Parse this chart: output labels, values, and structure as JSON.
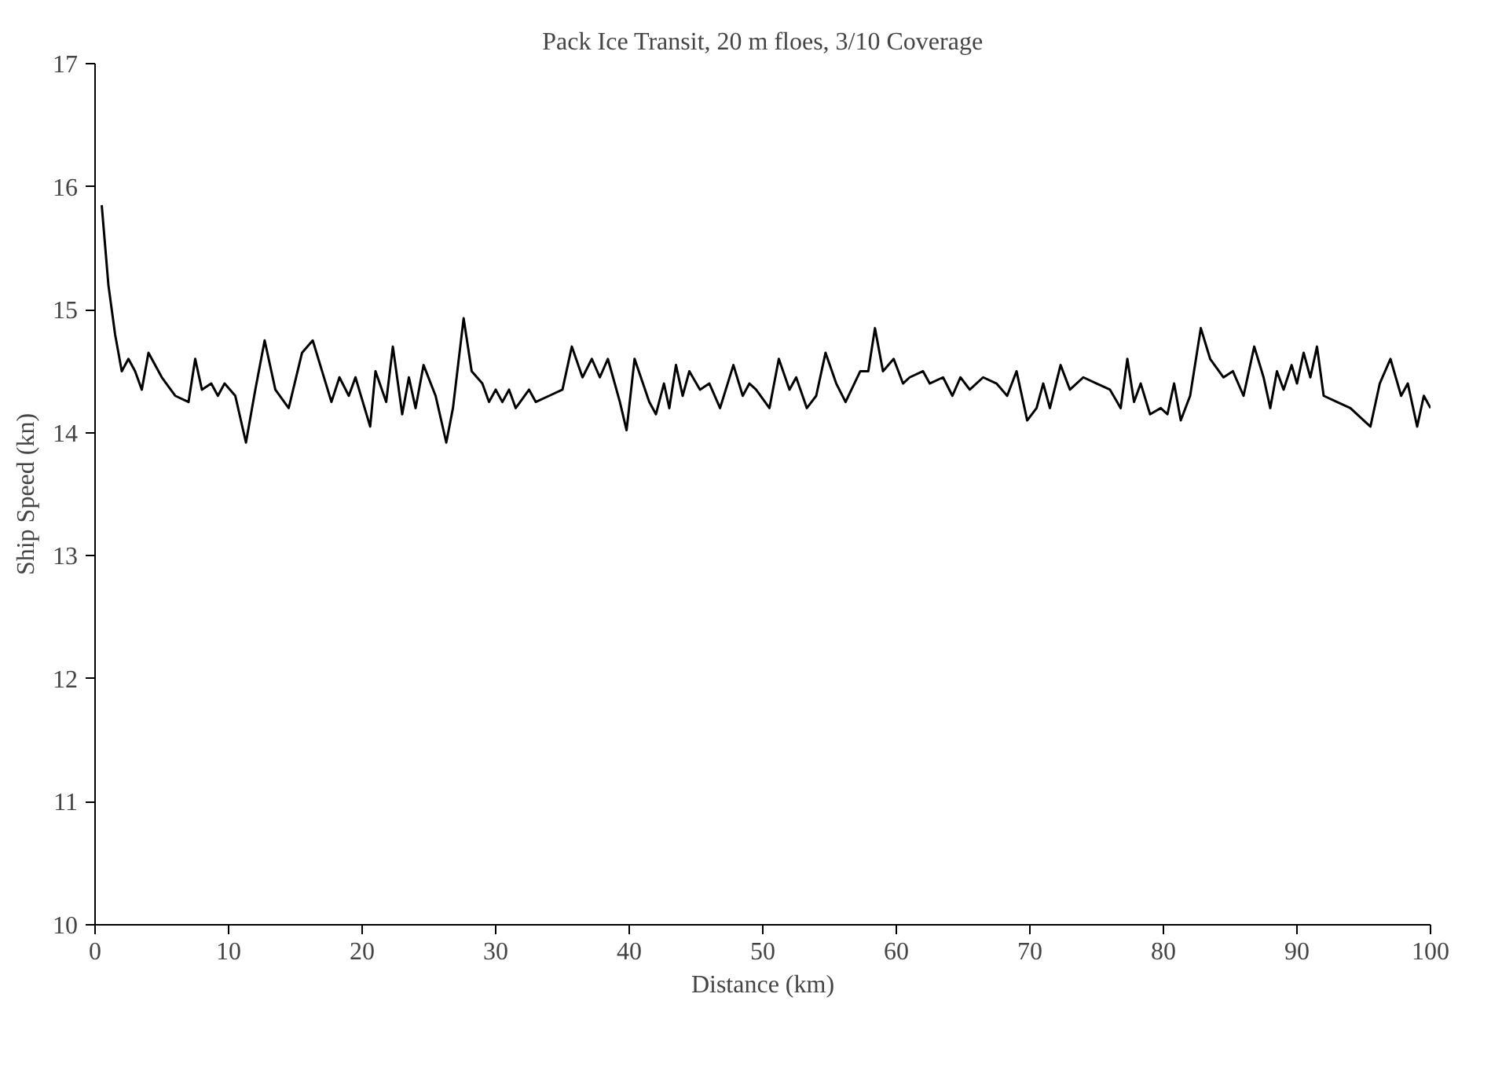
{
  "chart_data": {
    "type": "line",
    "title": "Pack Ice Transit, 20 m floes, 3/10 Coverage",
    "xlabel": "Distance (km)",
    "ylabel": "Ship Speed (kn)",
    "x": [
      0.5,
      1,
      1.5,
      2,
      2.5,
      3,
      3.5,
      4,
      5,
      6,
      7,
      7.5,
      8,
      8.7,
      9.2,
      9.7,
      10.5,
      11.3,
      12,
      12.7,
      13.5,
      14.5,
      15.5,
      16.3,
      17,
      17.7,
      18.3,
      19,
      19.5,
      20.6,
      21,
      21.8,
      22.3,
      23,
      23.5,
      24,
      24.6,
      25.5,
      26.3,
      26.8,
      27.6,
      28.2,
      29,
      29.5,
      30,
      30.5,
      31,
      31.5,
      32.5,
      33,
      34,
      35,
      35.7,
      36.5,
      37.2,
      37.8,
      38.4,
      39.3,
      39.8,
      40.4,
      41.5,
      42,
      42.6,
      43,
      43.5,
      44,
      44.5,
      45.3,
      46,
      46.8,
      47.8,
      48.5,
      49,
      49.5,
      50.5,
      51.2,
      52,
      52.5,
      53.3,
      54,
      54.7,
      55.5,
      56.2,
      57.3,
      57.9,
      58.4,
      59,
      59.8,
      60.5,
      61,
      62,
      62.5,
      63.5,
      64.2,
      64.8,
      65.5,
      66.5,
      67.5,
      68.3,
      69,
      69.8,
      70.5,
      71,
      71.5,
      72.3,
      73,
      74,
      75,
      76,
      76.8,
      77.3,
      77.8,
      78.3,
      79,
      79.8,
      80.3,
      80.8,
      81.3,
      82,
      82.8,
      83.5,
      84.5,
      85.2,
      86,
      86.8,
      87.5,
      88,
      88.5,
      89,
      89.6,
      90,
      90.5,
      91,
      91.5,
      92,
      93,
      94,
      95,
      95.5,
      96.2,
      97,
      97.8,
      98.3,
      99,
      99.5,
      100
    ],
    "series": [
      {
        "color": "#000000",
        "values": [
          15.85,
          15.2,
          14.8,
          14.5,
          14.6,
          14.5,
          14.35,
          14.65,
          14.45,
          14.3,
          14.25,
          14.6,
          14.35,
          14.4,
          14.3,
          14.4,
          14.3,
          13.92,
          14.35,
          14.75,
          14.35,
          14.2,
          14.65,
          14.75,
          14.5,
          14.25,
          14.45,
          14.3,
          14.45,
          14.05,
          14.5,
          14.25,
          14.7,
          14.15,
          14.45,
          14.2,
          14.55,
          14.3,
          13.92,
          14.2,
          14.93,
          14.5,
          14.4,
          14.25,
          14.35,
          14.25,
          14.35,
          14.2,
          14.35,
          14.25,
          14.3,
          14.35,
          14.7,
          14.45,
          14.6,
          14.45,
          14.6,
          14.25,
          14.02,
          14.6,
          14.25,
          14.15,
          14.4,
          14.2,
          14.55,
          14.3,
          14.5,
          14.35,
          14.4,
          14.2,
          14.55,
          14.3,
          14.4,
          14.35,
          14.2,
          14.6,
          14.35,
          14.45,
          14.2,
          14.3,
          14.65,
          14.4,
          14.25,
          14.5,
          14.5,
          14.85,
          14.5,
          14.6,
          14.4,
          14.45,
          14.5,
          14.4,
          14.45,
          14.3,
          14.45,
          14.35,
          14.45,
          14.4,
          14.3,
          14.5,
          14.1,
          14.2,
          14.4,
          14.2,
          14.55,
          14.35,
          14.45,
          14.4,
          14.35,
          14.2,
          14.6,
          14.25,
          14.4,
          14.15,
          14.2,
          14.15,
          14.4,
          14.1,
          14.3,
          14.85,
          14.6,
          14.45,
          14.5,
          14.3,
          14.7,
          14.45,
          14.2,
          14.5,
          14.35,
          14.55,
          14.4,
          14.65,
          14.45,
          14.7,
          14.3,
          14.25,
          14.2,
          14.1,
          14.05,
          14.4,
          14.6,
          14.3,
          14.4,
          14.05,
          14.3,
          14.2
        ]
      }
    ],
    "xlim": [
      0,
      100
    ],
    "ylim": [
      10,
      17
    ],
    "xticks": [
      0,
      10,
      20,
      30,
      40,
      50,
      60,
      70,
      80,
      90,
      100
    ],
    "yticks": [
      10,
      11,
      12,
      13,
      14,
      15,
      16,
      17
    ],
    "grid": false,
    "marker": "none",
    "line_style": "solid"
  }
}
